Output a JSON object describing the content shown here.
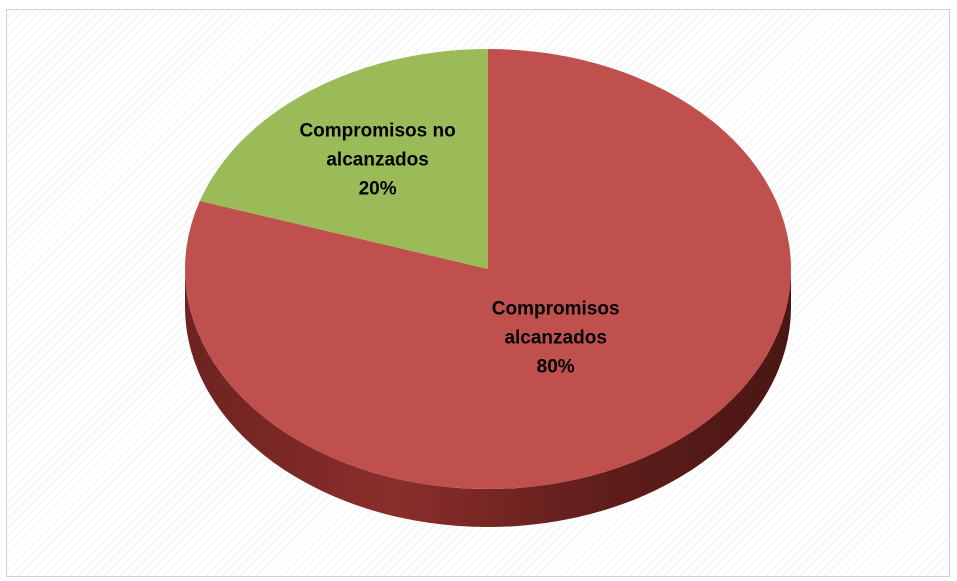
{
  "chart_data": {
    "type": "pie",
    "style": "3d",
    "slices": [
      {
        "label_lines": [
          "Compromisos",
          "alcanzados"
        ],
        "percent_label": "80%",
        "value": 80,
        "color": "#c0504d"
      },
      {
        "label_lines": [
          "Compromisos no",
          "alcanzados"
        ],
        "percent_label": "20%",
        "value": 20,
        "color": "#9bbb59"
      }
    ]
  }
}
